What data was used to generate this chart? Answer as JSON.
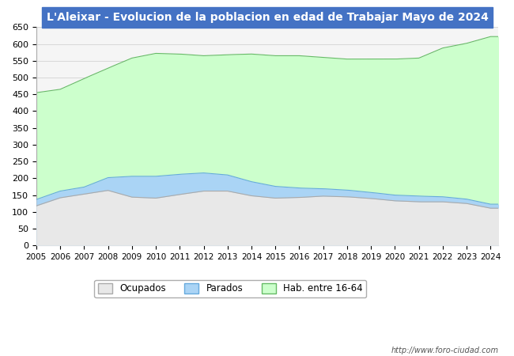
{
  "title": "L'Aleixar - Evolucion de la poblacion en edad de Trabajar Mayo de 2024",
  "title_bg": "#4472c4",
  "title_color": "white",
  "ylim": [
    0,
    650
  ],
  "url_text": "http://www.foro-ciudad.com",
  "legend_labels": [
    "Ocupados",
    "Parados",
    "Hab. entre 16-64"
  ],
  "color_hab_fill": "#ccffcc",
  "color_hab_line": "#66bb66",
  "color_parados_fill": "#aad4f5",
  "color_parados_line": "#66aadd",
  "color_ocupados_fill": "#e8e8e8",
  "color_ocupados_line": "#aaaaaa",
  "years": [
    2005,
    2006,
    2007,
    2008,
    2009,
    2010,
    2011,
    2012,
    2013,
    2014,
    2015,
    2016,
    2017,
    2018,
    2019,
    2020,
    2021,
    2022,
    2023,
    2024
  ],
  "hab_yearly": [
    455,
    465,
    497,
    528,
    558,
    572,
    570,
    565,
    568,
    570,
    565,
    565,
    560,
    555,
    555,
    555,
    558,
    588,
    602,
    622
  ],
  "parados_yearly": [
    19,
    20,
    21,
    38,
    62,
    65,
    60,
    54,
    48,
    42,
    35,
    28,
    22,
    20,
    18,
    17,
    17,
    15,
    13,
    12
  ],
  "ocupados_yearly": [
    118,
    142,
    153,
    164,
    144,
    141,
    152,
    162,
    162,
    148,
    141,
    143,
    147,
    145,
    140,
    133,
    130,
    130,
    125,
    111
  ]
}
